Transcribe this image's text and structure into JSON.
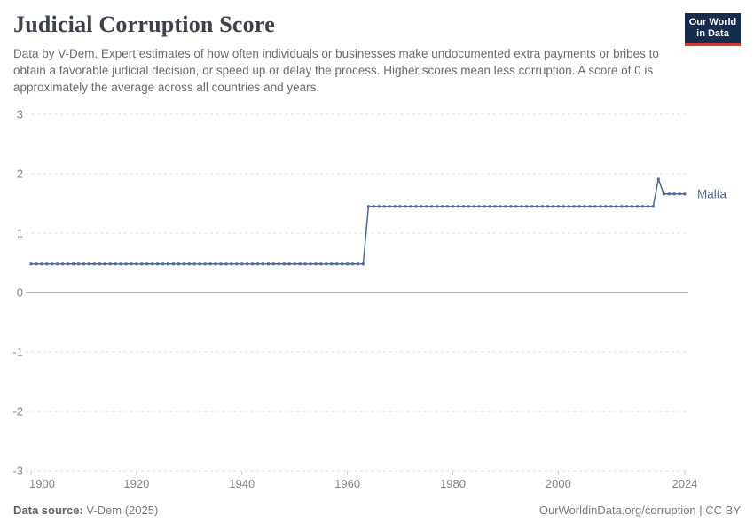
{
  "header": {
    "title": "Judicial Corruption Score",
    "subtitle": "Data by V-Dem. Expert estimates of how often individuals or businesses make undocumented extra payments or bribes to obtain a favorable judicial decision, or speed up or delay the process. Higher scores mean less corruption. A score of 0 is approximately the average across all countries and years."
  },
  "logo": {
    "line1": "Our World",
    "line2": "in Data",
    "bg_color": "#152c4e",
    "accent_color": "#cc3b34"
  },
  "footer": {
    "source_label": "Data source:",
    "source_value": "V-Dem (2025)",
    "right": "OurWorldinData.org/corruption | CC BY"
  },
  "chart_data": {
    "type": "line",
    "title": "Judicial Corruption Score",
    "xlabel": "",
    "ylabel": "",
    "xlim": [
      1900,
      2024
    ],
    "ylim": [
      -3,
      3
    ],
    "x_ticks": [
      1900,
      1920,
      1940,
      1960,
      1980,
      2000,
      2024
    ],
    "y_ticks": [
      3,
      2,
      1,
      0,
      -1,
      -2,
      -3
    ],
    "grid": "horizontal-dashed",
    "legend_position": "end-of-line-label",
    "series": [
      {
        "name": "Malta",
        "color": "#4c6a9c",
        "note": "one data point per year; constant-value runs encoded as segments",
        "segments": [
          {
            "from": 1900,
            "to": 1963,
            "value": 0.48
          },
          {
            "from": 1964,
            "to": 2018,
            "value": 1.45
          },
          {
            "from": 2019,
            "to": 2019,
            "value": 1.91
          },
          {
            "from": 2020,
            "to": 2024,
            "value": 1.66
          }
        ]
      }
    ],
    "colors": {
      "grid_line": "#dedede",
      "zero_line": "#9e9e9e",
      "tick_label": "#848484",
      "axis_tick": "#c8c8c8"
    }
  }
}
